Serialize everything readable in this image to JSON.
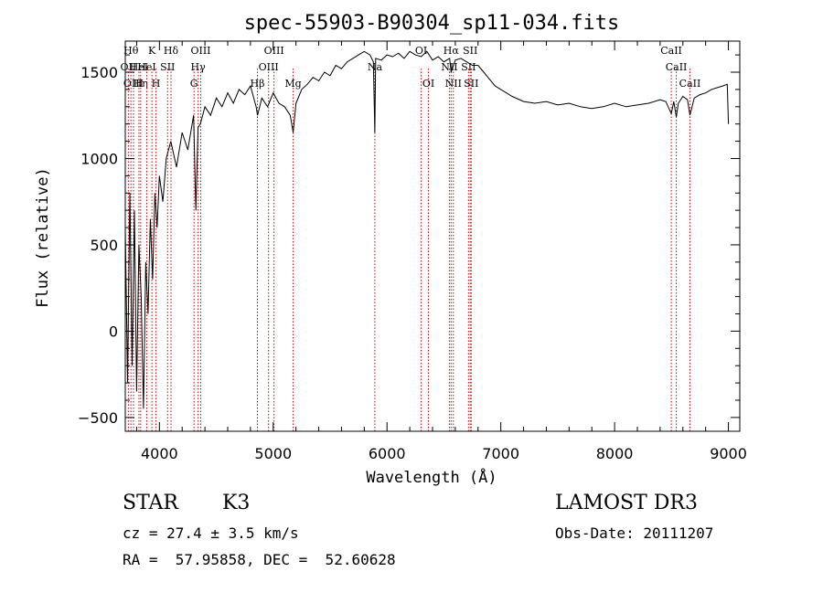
{
  "chart_data": {
    "type": "line",
    "title": "spec-55903-B90304_sp11-034.fits",
    "xlabel": "Wavelength (Å)",
    "ylabel": "Flux (relative)",
    "xlim": [
      3700,
      9100
    ],
    "ylim": [
      -580,
      1680
    ],
    "x_ticks": [
      4000,
      5000,
      6000,
      7000,
      8000,
      9000
    ],
    "y_ticks": [
      -500,
      0,
      500,
      1000,
      1500
    ],
    "x_tick_labels": [
      "4000",
      "5000",
      "6000",
      "7000",
      "8000",
      "9000"
    ],
    "y_tick_labels": [
      "−500",
      "0",
      "500",
      "1000",
      "1500"
    ],
    "grid": false,
    "line_color": "#000000",
    "marker_color": "#cc0000",
    "series": [
      {
        "name": "flux",
        "x": [
          3700,
          3720,
          3740,
          3760,
          3780,
          3800,
          3820,
          3840,
          3860,
          3880,
          3900,
          3920,
          3940,
          3960,
          3980,
          4000,
          4030,
          4060,
          4100,
          4150,
          4200,
          4250,
          4300,
          4320,
          4340,
          4360,
          4400,
          4450,
          4500,
          4550,
          4600,
          4650,
          4700,
          4750,
          4800,
          4850,
          4862,
          4900,
          4950,
          5000,
          5050,
          5100,
          5150,
          5175,
          5200,
          5250,
          5300,
          5350,
          5400,
          5450,
          5500,
          5550,
          5600,
          5650,
          5700,
          5750,
          5800,
          5850,
          5880,
          5893,
          5900,
          5950,
          6000,
          6050,
          6100,
          6150,
          6200,
          6250,
          6300,
          6350,
          6400,
          6450,
          6500,
          6550,
          6563,
          6600,
          6650,
          6700,
          6750,
          6800,
          6850,
          6900,
          6950,
          7000,
          7100,
          7200,
          7300,
          7400,
          7500,
          7600,
          7700,
          7800,
          7900,
          8000,
          8100,
          8200,
          8300,
          8400,
          8450,
          8498,
          8520,
          8542,
          8560,
          8600,
          8640,
          8662,
          8700,
          8750,
          8800,
          8850,
          8900,
          8950,
          8990,
          9000
        ],
        "y": [
          600,
          -300,
          800,
          -200,
          700,
          -350,
          500,
          200,
          -450,
          400,
          100,
          650,
          300,
          800,
          600,
          900,
          750,
          1000,
          1100,
          950,
          1150,
          1050,
          1250,
          700,
          1180,
          1200,
          1300,
          1250,
          1350,
          1300,
          1380,
          1320,
          1400,
          1370,
          1420,
          1300,
          1250,
          1350,
          1300,
          1380,
          1320,
          1300,
          1250,
          1150,
          1320,
          1400,
          1430,
          1470,
          1450,
          1500,
          1480,
          1540,
          1520,
          1560,
          1580,
          1600,
          1620,
          1600,
          1560,
          1150,
          1580,
          1570,
          1600,
          1590,
          1610,
          1580,
          1620,
          1600,
          1590,
          1620,
          1570,
          1590,
          1560,
          1580,
          1500,
          1570,
          1580,
          1560,
          1540,
          1540,
          1500,
          1460,
          1420,
          1400,
          1360,
          1330,
          1320,
          1330,
          1310,
          1320,
          1300,
          1290,
          1300,
          1320,
          1300,
          1310,
          1320,
          1340,
          1330,
          1260,
          1330,
          1240,
          1320,
          1360,
          1340,
          1250,
          1350,
          1370,
          1380,
          1400,
          1410,
          1420,
          1430,
          1200
        ]
      }
    ],
    "line_markers": [
      {
        "wavelength": 3727,
        "label": "OII",
        "row": 2
      },
      {
        "wavelength": 3750,
        "label": "Hθ",
        "row": 1
      },
      {
        "wavelength": 3772,
        "label": "OIII",
        "row": 3
      },
      {
        "wavelength": 3820,
        "label": "HeI",
        "row": 2
      },
      {
        "wavelength": 3835,
        "label": "Hη",
        "row": 3
      },
      {
        "wavelength": 3889,
        "label": "HeI",
        "row": 2
      },
      {
        "wavelength": 3934,
        "label": "K",
        "row": 1
      },
      {
        "wavelength": 3970,
        "label": "H",
        "row": 3
      },
      {
        "wavelength": 4072,
        "label": "SII",
        "row": 2
      },
      {
        "wavelength": 4102,
        "label": "Hδ",
        "row": 1
      },
      {
        "wavelength": 4304,
        "label": "G",
        "row": 3
      },
      {
        "wavelength": 4340,
        "label": "Hγ",
        "row": 2
      },
      {
        "wavelength": 4363,
        "label": "OIII",
        "row": 1
      },
      {
        "wavelength": 4861,
        "label": "Hβ",
        "row": 3
      },
      {
        "wavelength": 4959,
        "label": "OIII",
        "row": 2
      },
      {
        "wavelength": 5007,
        "label": "OIII",
        "row": 1
      },
      {
        "wavelength": 5175,
        "label": "Mg",
        "row": 3
      },
      {
        "wavelength": 5893,
        "label": "Na",
        "row": 2
      },
      {
        "wavelength": 6300,
        "label": "OI",
        "row": 1
      },
      {
        "wavelength": 6364,
        "label": "OI",
        "row": 3
      },
      {
        "wavelength": 6548,
        "label": "NII",
        "row": 2
      },
      {
        "wavelength": 6563,
        "label": "Hα",
        "row": 1
      },
      {
        "wavelength": 6583,
        "label": "NII",
        "row": 3
      },
      {
        "wavelength": 6716,
        "label": "SII",
        "row": 2
      },
      {
        "wavelength": 6731,
        "label": "SII",
        "row": 1
      },
      {
        "wavelength": 6740,
        "label": "SII",
        "row": 3
      },
      {
        "wavelength": 8498,
        "label": "CaII",
        "row": 1
      },
      {
        "wavelength": 8542,
        "label": "CaII",
        "row": 2
      },
      {
        "wavelength": 8662,
        "label": "CaII",
        "row": 3
      }
    ]
  },
  "info": {
    "object_class": "STAR",
    "subclass": "K3",
    "survey": "LAMOST DR3",
    "redshift": "cz = 27.4 ± 3.5 km/s",
    "obs_date": "Obs-Date: 20111207",
    "coords": "RA =  57.95858, DEC =  52.60628"
  }
}
